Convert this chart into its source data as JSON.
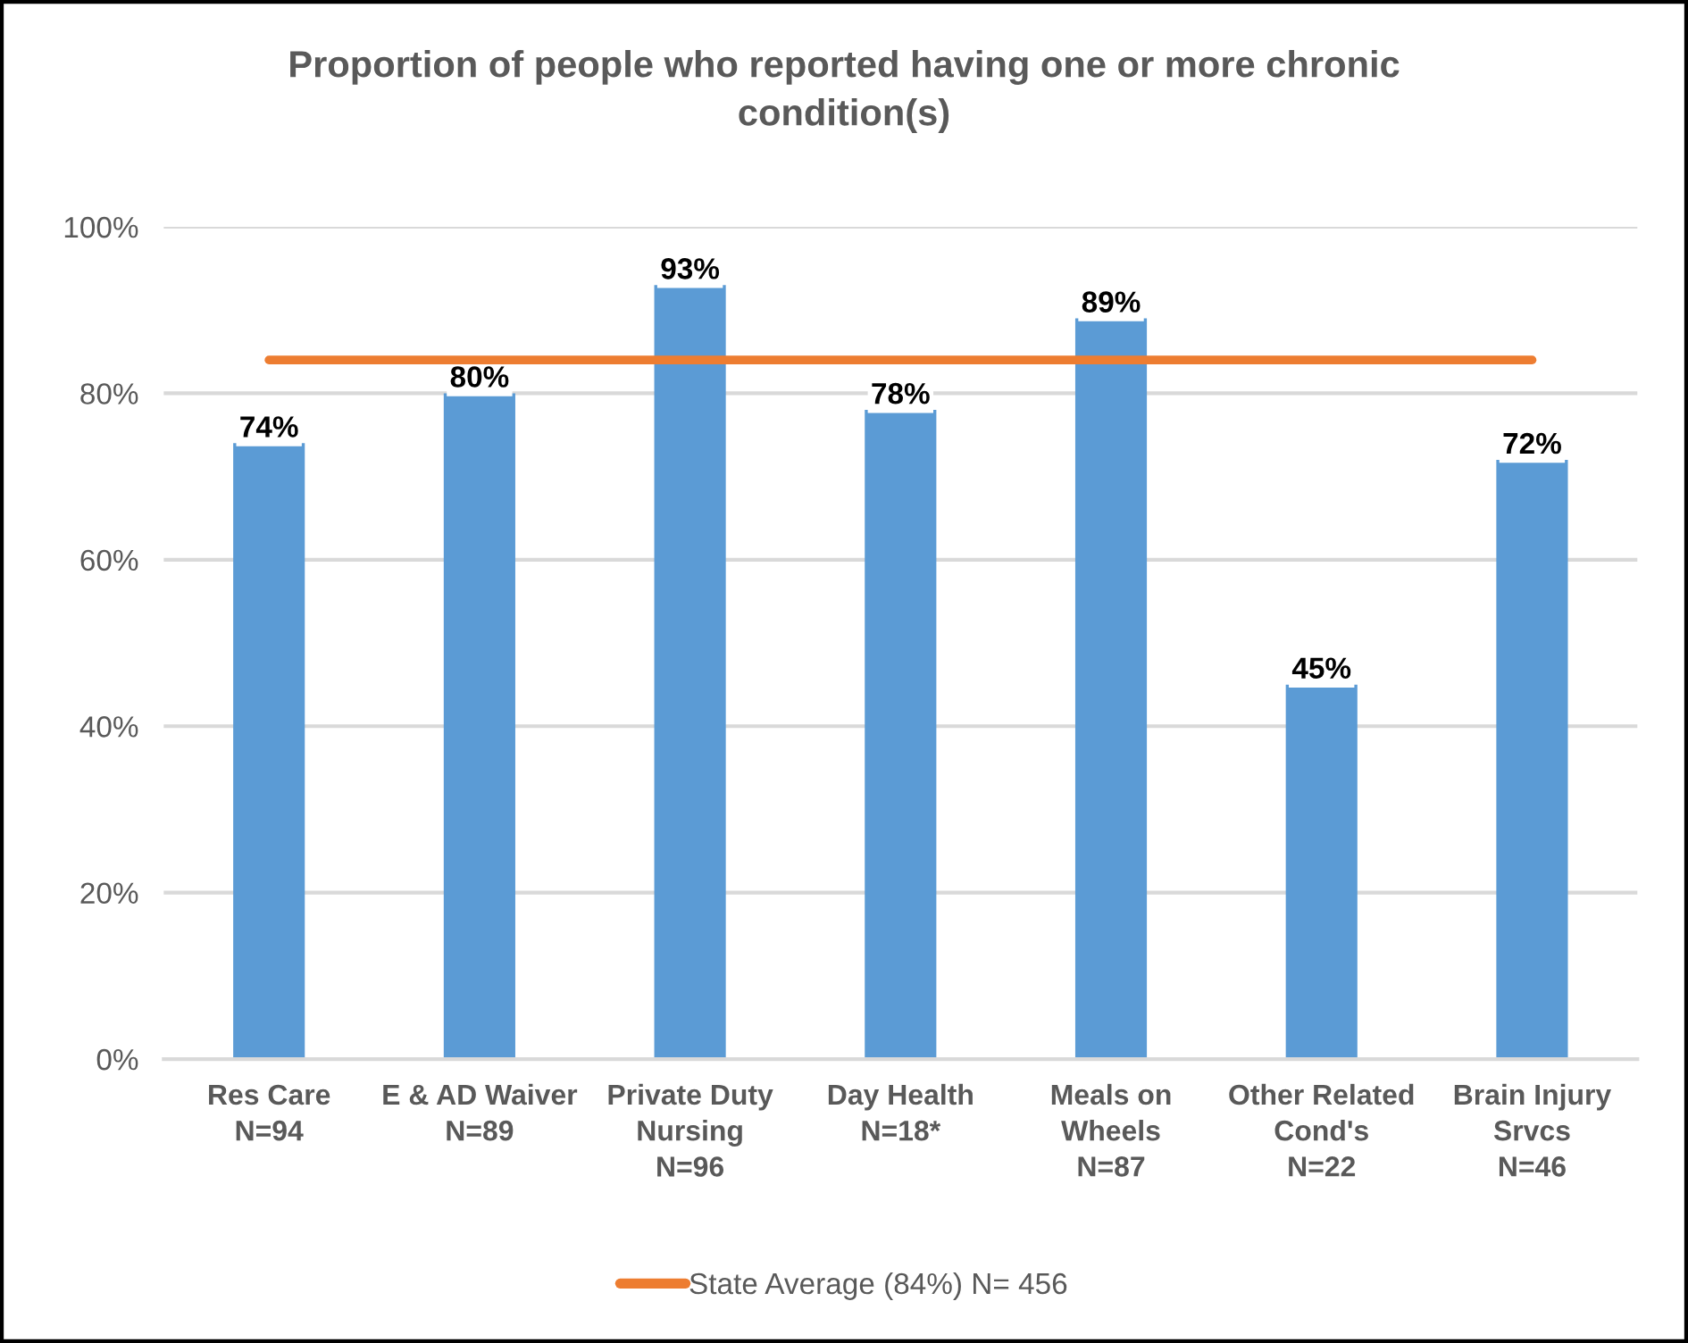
{
  "chart_data": {
    "type": "bar",
    "title": "Proportion of people who reported having one or more chronic\ncondition(s)",
    "categories": [
      "Res Care\nN=94",
      "E & AD Waiver\nN=89",
      "Private Duty\nNursing\nN=96",
      "Day Health\nN=18*",
      "Meals on\nWheels\nN=87",
      "Other Related\nCond's\nN=22",
      "Brain Injury\nSrvcs\nN=46"
    ],
    "series": [
      {
        "color": "#5b9bd5",
        "values": [
          74,
          80,
          93,
          78,
          89,
          45,
          72
        ],
        "value_labels": [
          "74%",
          "80%",
          "93%",
          "78%",
          "89%",
          "45%",
          "72%"
        ]
      },
      {
        "type": "line",
        "name": "State Average (84%) N= 456",
        "color": "#ed7d31",
        "values": [
          84,
          84,
          84,
          84,
          84,
          84,
          84
        ]
      }
    ],
    "ylim": [
      0,
      100
    ],
    "yticks": [
      {
        "value": 0,
        "label": "0%"
      },
      {
        "value": 20,
        "label": "20%"
      },
      {
        "value": 40,
        "label": "40%"
      },
      {
        "value": 60,
        "label": "60%"
      },
      {
        "value": 80,
        "label": "80%"
      },
      {
        "value": 100,
        "label": "100%"
      }
    ],
    "grid": "y",
    "legend": "bottom"
  }
}
